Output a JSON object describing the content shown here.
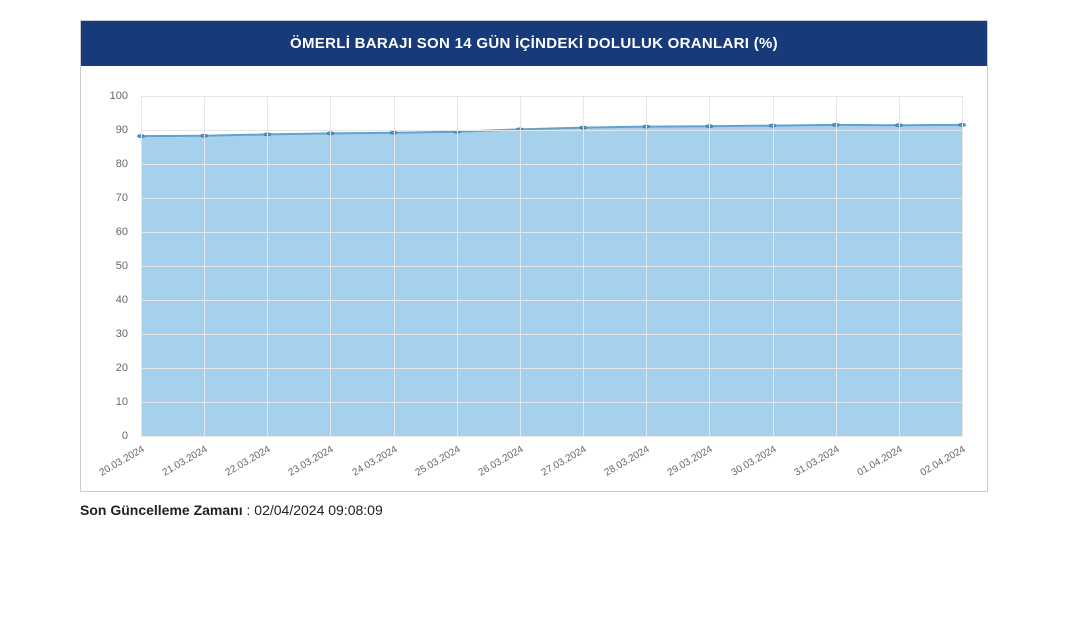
{
  "chart": {
    "type": "area",
    "title": "ÖMERLİ BARAJI SON 14 GÜN İÇİNDEKİ DOLULUK ORANLARI (%)",
    "title_color": "#ffffff",
    "header_bg": "#173a7a",
    "background_color": "#ffffff",
    "grid_color": "#e6e6e6",
    "area_fill": "#a5d1ec",
    "line_color": "#5fa3cf",
    "marker_color": "#5fa3cf",
    "marker_border": "#3a7ba8",
    "marker_radius": 4,
    "line_width": 2,
    "ylim": [
      0,
      100
    ],
    "ytick_step": 10,
    "y_labels": [
      "0",
      "10",
      "20",
      "30",
      "40",
      "50",
      "60",
      "70",
      "80",
      "90",
      "100"
    ],
    "x_labels": [
      "20.03.2024",
      "21.03.2024",
      "22.03.2024",
      "23.03.2024",
      "24.03.2024",
      "25.03.2024",
      "26.03.2024",
      "27.03.2024",
      "28.03.2024",
      "29.03.2024",
      "30.03.2024",
      "31.03.2024",
      "01.04.2024",
      "02.04.2024"
    ],
    "values": [
      88.2,
      88.3,
      88.7,
      89.0,
      89.2,
      89.5,
      90.2,
      90.7,
      91.0,
      91.1,
      91.3,
      91.5,
      91.4,
      91.5
    ],
    "label_fontsize": 11,
    "label_color": "#666666",
    "x_rotation_deg": -30
  },
  "footer": {
    "label": "Son Güncelleme Zamanı",
    "value": "02/04/2024 09:08:09"
  }
}
